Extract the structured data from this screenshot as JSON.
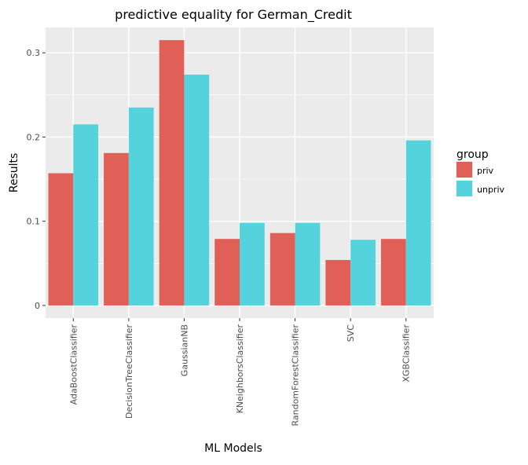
{
  "chart_data": {
    "type": "bar",
    "title": "predictive equality for German_Credit",
    "xlabel": "ML Models",
    "ylabel": "Results",
    "categories": [
      "AdaBoostClassifier",
      "DecisionTreeClassifier",
      "GaussianNB",
      "KNeighborsClassifier",
      "RandomForestClassifier",
      "SVC",
      "XGBClassifier"
    ],
    "series": [
      {
        "name": "priv",
        "color": "#e05f56",
        "values": [
          0.157,
          0.181,
          0.315,
          0.079,
          0.086,
          0.054,
          0.079
        ]
      },
      {
        "name": "unpriv",
        "color": "#55d3dc",
        "values": [
          0.215,
          0.235,
          0.274,
          0.098,
          0.098,
          0.078,
          0.196
        ]
      }
    ],
    "ylim": [
      -0.015,
      0.33
    ],
    "yticks": [
      0,
      0.1,
      0.2,
      0.3
    ],
    "ytick_labels": [
      "0",
      "0.1",
      "0.2",
      "0.3"
    ],
    "grid": true,
    "legend": {
      "title": "group",
      "placement": "right",
      "entries": [
        "priv",
        "unpriv"
      ]
    }
  }
}
